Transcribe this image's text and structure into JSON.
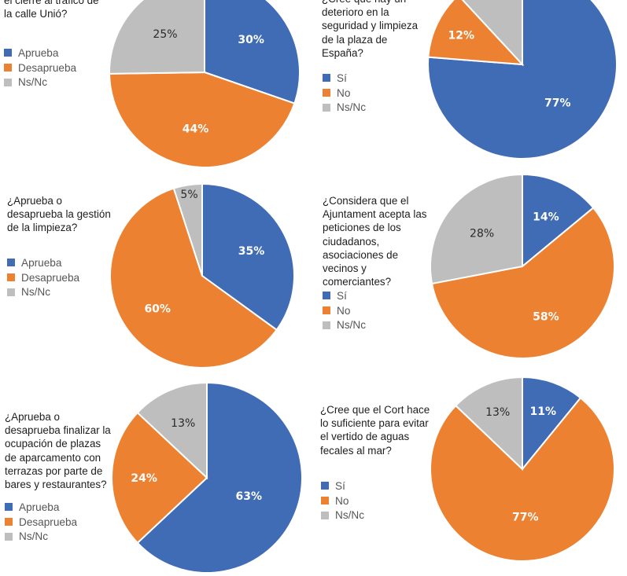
{
  "colors": {
    "yes": "#3f6cb4",
    "no": "#ec8231",
    "nsnc": "#bebebe"
  },
  "chart_data": [
    {
      "type": "pie",
      "question": "el cierre al tráfico de la calle Unió?",
      "categories": [
        "Aprueba",
        "Desaprueba",
        "Ns/Nc"
      ],
      "values": [
        30,
        44,
        25
      ],
      "labels": [
        "30%",
        "44%",
        "25%"
      ]
    },
    {
      "type": "pie",
      "question": "¿Cree que hay un deterioro en la seguridad y limpieza de la plaza de España?",
      "categories": [
        "Sí",
        "No",
        "Ns/Nc"
      ],
      "values": [
        77,
        12,
        12
      ],
      "labels": [
        "77%",
        "12%",
        "12%"
      ]
    },
    {
      "type": "pie",
      "question": "¿Aprueba o desaprueba la gestión de la limpieza?",
      "categories": [
        "Aprueba",
        "Desaprueba",
        "Ns/Nc"
      ],
      "values": [
        35,
        60,
        5
      ],
      "labels": [
        "35%",
        "60%",
        "5%"
      ]
    },
    {
      "type": "pie",
      "question": "¿Considera que el Ajuntament acepta las peticiones de los ciudadanos, asociaciones de vecinos y comerciantes?",
      "categories": [
        "Sí",
        "No",
        "Ns/Nc"
      ],
      "values": [
        14,
        58,
        28
      ],
      "labels": [
        "14%",
        "58%",
        "28%"
      ]
    },
    {
      "type": "pie",
      "question": "¿Aprueba o desaprueba finalizar la ocupación de plazas de aparcamento con terrazas por parte de bares y restaurantes?",
      "categories": [
        "Aprueba",
        "Desaprueba",
        "Ns/Nc"
      ],
      "values": [
        63,
        24,
        13
      ],
      "labels": [
        "63%",
        "24%",
        "13%"
      ]
    },
    {
      "type": "pie",
      "question": "¿Cree que el Cort hace lo suficiente para evitar el vertido de aguas fecales al mar?",
      "categories": [
        "Sí",
        "No",
        "Ns/Nc"
      ],
      "values": [
        11,
        77,
        13
      ],
      "labels": [
        "11%",
        "77%",
        "13%"
      ]
    }
  ]
}
